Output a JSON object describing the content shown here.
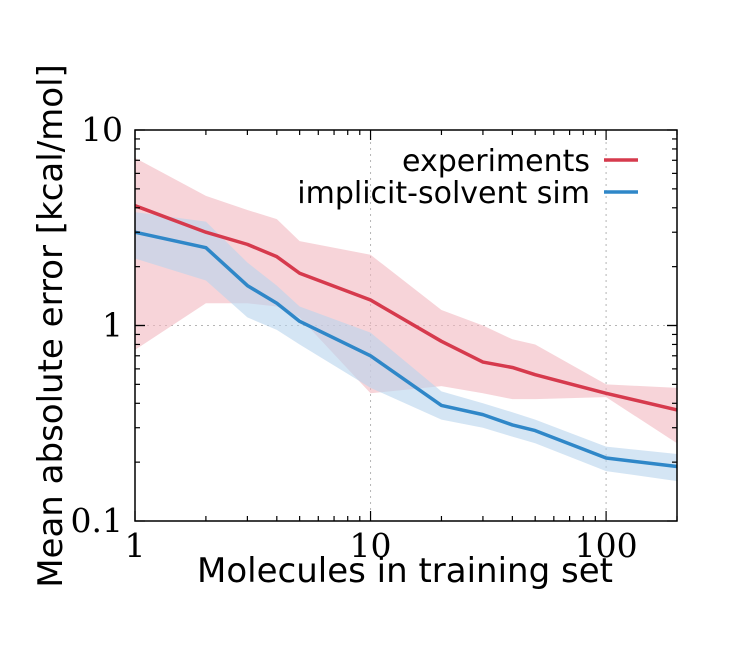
{
  "chart_data": {
    "type": "line",
    "xscale": "log",
    "yscale": "log",
    "xlim": [
      1,
      200
    ],
    "ylim": [
      0.1,
      10
    ],
    "xlabel": "Molecules in training set",
    "ylabel": "Mean absolute error [kcal/mol]",
    "xticks": [
      1,
      10,
      100
    ],
    "xtick_labels": [
      "1",
      "10",
      "100"
    ],
    "yticks": [
      0.1,
      1,
      10
    ],
    "ytick_labels": [
      "0.1",
      "1",
      "10"
    ],
    "grid": true,
    "legend_position": "top-right",
    "series": [
      {
        "name": "experiments",
        "color": "#d63a4d",
        "band_color": "#f2b8c0",
        "x": [
          1,
          2,
          3,
          4,
          5,
          10,
          20,
          30,
          40,
          50,
          100,
          200
        ],
        "y": [
          4.1,
          3.0,
          2.6,
          2.25,
          1.85,
          1.35,
          0.83,
          0.65,
          0.61,
          0.56,
          0.45,
          0.37
        ],
        "lower": [
          0.75,
          1.3,
          1.3,
          1.25,
          1.1,
          0.45,
          0.49,
          0.45,
          0.42,
          0.42,
          0.43,
          0.25
        ],
        "upper": [
          7.2,
          4.6,
          3.9,
          3.5,
          2.7,
          2.3,
          1.2,
          1.0,
          0.85,
          0.8,
          0.5,
          0.48
        ]
      },
      {
        "name": "implicit-solvent sim",
        "color": "#2f87c8",
        "band_color": "#b8d4ec",
        "x": [
          1,
          2,
          3,
          4,
          5,
          10,
          20,
          30,
          40,
          50,
          100,
          200
        ],
        "y": [
          3.0,
          2.5,
          1.6,
          1.3,
          1.05,
          0.7,
          0.39,
          0.35,
          0.31,
          0.29,
          0.21,
          0.19
        ],
        "lower": [
          2.2,
          1.7,
          1.1,
          0.95,
          0.8,
          0.48,
          0.33,
          0.3,
          0.27,
          0.25,
          0.18,
          0.16
        ],
        "upper": [
          3.8,
          3.4,
          2.1,
          1.6,
          1.25,
          0.92,
          0.46,
          0.4,
          0.36,
          0.33,
          0.24,
          0.22
        ]
      }
    ]
  }
}
